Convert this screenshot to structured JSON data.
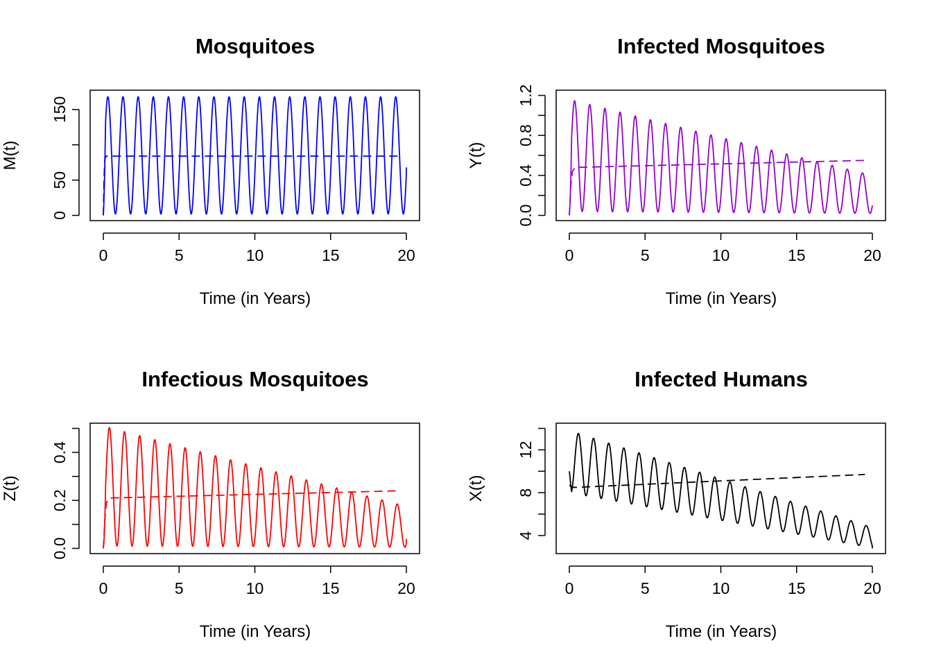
{
  "chart_data": [
    {
      "type": "line",
      "title": "Mosquitoes",
      "xlabel": "Time (in Years)",
      "ylabel": "M(t)",
      "xlim": [
        0,
        20
      ],
      "ylim": [
        0,
        170
      ],
      "xticks": [
        0,
        5,
        10,
        15,
        20
      ],
      "xtick_labels": [
        "0",
        "5",
        "10",
        "15",
        "20"
      ],
      "yticks": [
        0,
        50,
        100,
        150
      ],
      "ytick_labels": [
        "0",
        "50",
        "",
        "150"
      ],
      "color": "#0000ff",
      "grid": false,
      "series": [
        {
          "style": "solid",
          "oscillation": {
            "period_years": 1,
            "baseline_start": 85,
            "baseline_end": 85,
            "amplitude_start": 83,
            "amplitude_end": 83,
            "first_peak_year": 0.3,
            "start_value": 0,
            "end_value": 68
          }
        },
        {
          "style": "dashed",
          "x": [
            0,
            0.05,
            0.1,
            0.2,
            0.5,
            19.5
          ],
          "y": [
            0,
            55,
            80,
            84,
            84,
            84
          ]
        }
      ]
    },
    {
      "type": "line",
      "title": "Infected Mosquitoes",
      "xlabel": "Time (in Years)",
      "ylabel": "Y(t)",
      "xlim": [
        0,
        20
      ],
      "ylim": [
        0,
        1.2
      ],
      "xticks": [
        0,
        5,
        10,
        15,
        20
      ],
      "xtick_labels": [
        "0",
        "5",
        "10",
        "15",
        "20"
      ],
      "yticks": [
        0,
        0.2,
        0.4,
        0.6,
        0.8,
        1.0,
        1.2
      ],
      "ytick_labels": [
        "0.0",
        "",
        "0.4",
        "",
        "0.8",
        "",
        "1.2"
      ],
      "color": "#9400d3",
      "grid": false,
      "series": [
        {
          "style": "solid",
          "oscillation": {
            "period_years": 1,
            "baseline_start": 0.6,
            "baseline_end": 0.21,
            "amplitude_start": 0.56,
            "amplitude_end": 0.19,
            "first_peak_year": 0.35,
            "start_value": 0,
            "end_value": 0.1
          }
        },
        {
          "style": "dashed",
          "x": [
            0,
            0.1,
            0.2,
            0.4,
            19.5
          ],
          "y": [
            0,
            0.3,
            0.44,
            0.48,
            0.55
          ]
        }
      ]
    },
    {
      "type": "line",
      "title": "Infectious Mosquitoes",
      "xlabel": "Time (in Years)",
      "ylabel": "Z(t)",
      "xlim": [
        0,
        20
      ],
      "ylim": [
        0,
        0.5
      ],
      "xticks": [
        0,
        5,
        10,
        15,
        20
      ],
      "xtick_labels": [
        "0",
        "5",
        "10",
        "15",
        "20"
      ],
      "yticks": [
        0,
        0.1,
        0.2,
        0.3,
        0.4,
        0.5
      ],
      "ytick_labels": [
        "0.0",
        "",
        "0.2",
        "",
        "0.4",
        ""
      ],
      "color": "#ff0000",
      "grid": false,
      "series": [
        {
          "style": "solid",
          "oscillation": {
            "period_years": 1,
            "baseline_start": 0.26,
            "baseline_end": 0.09,
            "amplitude_start": 0.25,
            "amplitude_end": 0.085,
            "first_peak_year": 0.4,
            "start_value": 0,
            "end_value": 0.04
          }
        },
        {
          "style": "dashed",
          "x": [
            0,
            0.1,
            0.2,
            0.4,
            19.5
          ],
          "y": [
            0,
            0.12,
            0.19,
            0.21,
            0.24
          ]
        }
      ]
    },
    {
      "type": "line",
      "title": "Infected Humans",
      "xlabel": "Time (in Years)",
      "ylabel": "X(t)",
      "xlim": [
        0,
        20
      ],
      "ylim": [
        2.8,
        14
      ],
      "xticks": [
        0,
        5,
        10,
        15,
        20
      ],
      "xtick_labels": [
        "0",
        "5",
        "10",
        "15",
        "20"
      ],
      "yticks": [
        4,
        6,
        8,
        10,
        12,
        14
      ],
      "ytick_labels": [
        "4",
        "",
        "8",
        "",
        "12",
        ""
      ],
      "color": "#000000",
      "grid": false,
      "series": [
        {
          "style": "solid",
          "oscillation": {
            "period_years": 1,
            "baseline_start": 10.9,
            "baseline_end": 3.8,
            "amplitude_start": 2.9,
            "amplitude_end": 0.95,
            "first_peak_year": 0.6,
            "start_value": 10,
            "end_value": 2.8
          }
        },
        {
          "style": "dashed",
          "x": [
            0,
            0.2,
            0.5,
            19.5
          ],
          "y": [
            8.7,
            8.5,
            8.5,
            9.7
          ]
        }
      ]
    }
  ]
}
